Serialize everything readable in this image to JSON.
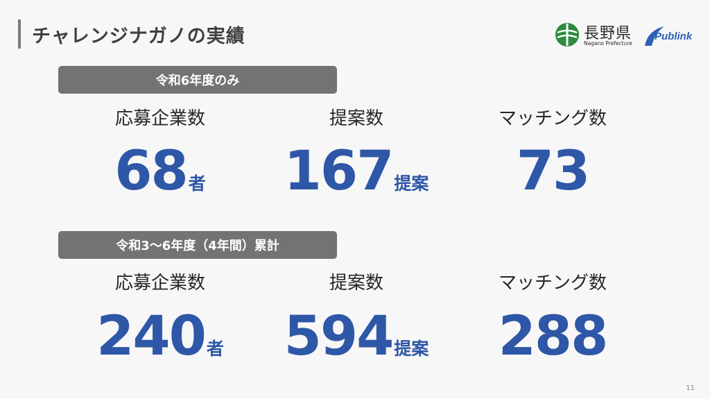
{
  "slide": {
    "title": "チャレンジナガノの実績",
    "page_number": "11"
  },
  "logos": {
    "nagano_kanji": "長野県",
    "nagano_roman": "Nagano Prefecture",
    "publink": "Publink"
  },
  "section1": {
    "heading": "令和6年度のみ",
    "stats": [
      {
        "label": "応募企業数",
        "value": "68",
        "unit": "者"
      },
      {
        "label": "提案数",
        "value": "167",
        "unit": "提案"
      },
      {
        "label": "マッチング数",
        "value": "73",
        "unit": ""
      }
    ]
  },
  "section2": {
    "heading": "令和3〜6年度（4年間）累計",
    "stats": [
      {
        "label": "応募企業数",
        "value": "240",
        "unit": "者"
      },
      {
        "label": "提案数",
        "value": "594",
        "unit": "提案"
      },
      {
        "label": "マッチング数",
        "value": "288",
        "unit": ""
      }
    ]
  },
  "colors": {
    "accent_blue": "#2f57a7",
    "pill_gray": "#737373",
    "background": "#f7f7f7"
  }
}
